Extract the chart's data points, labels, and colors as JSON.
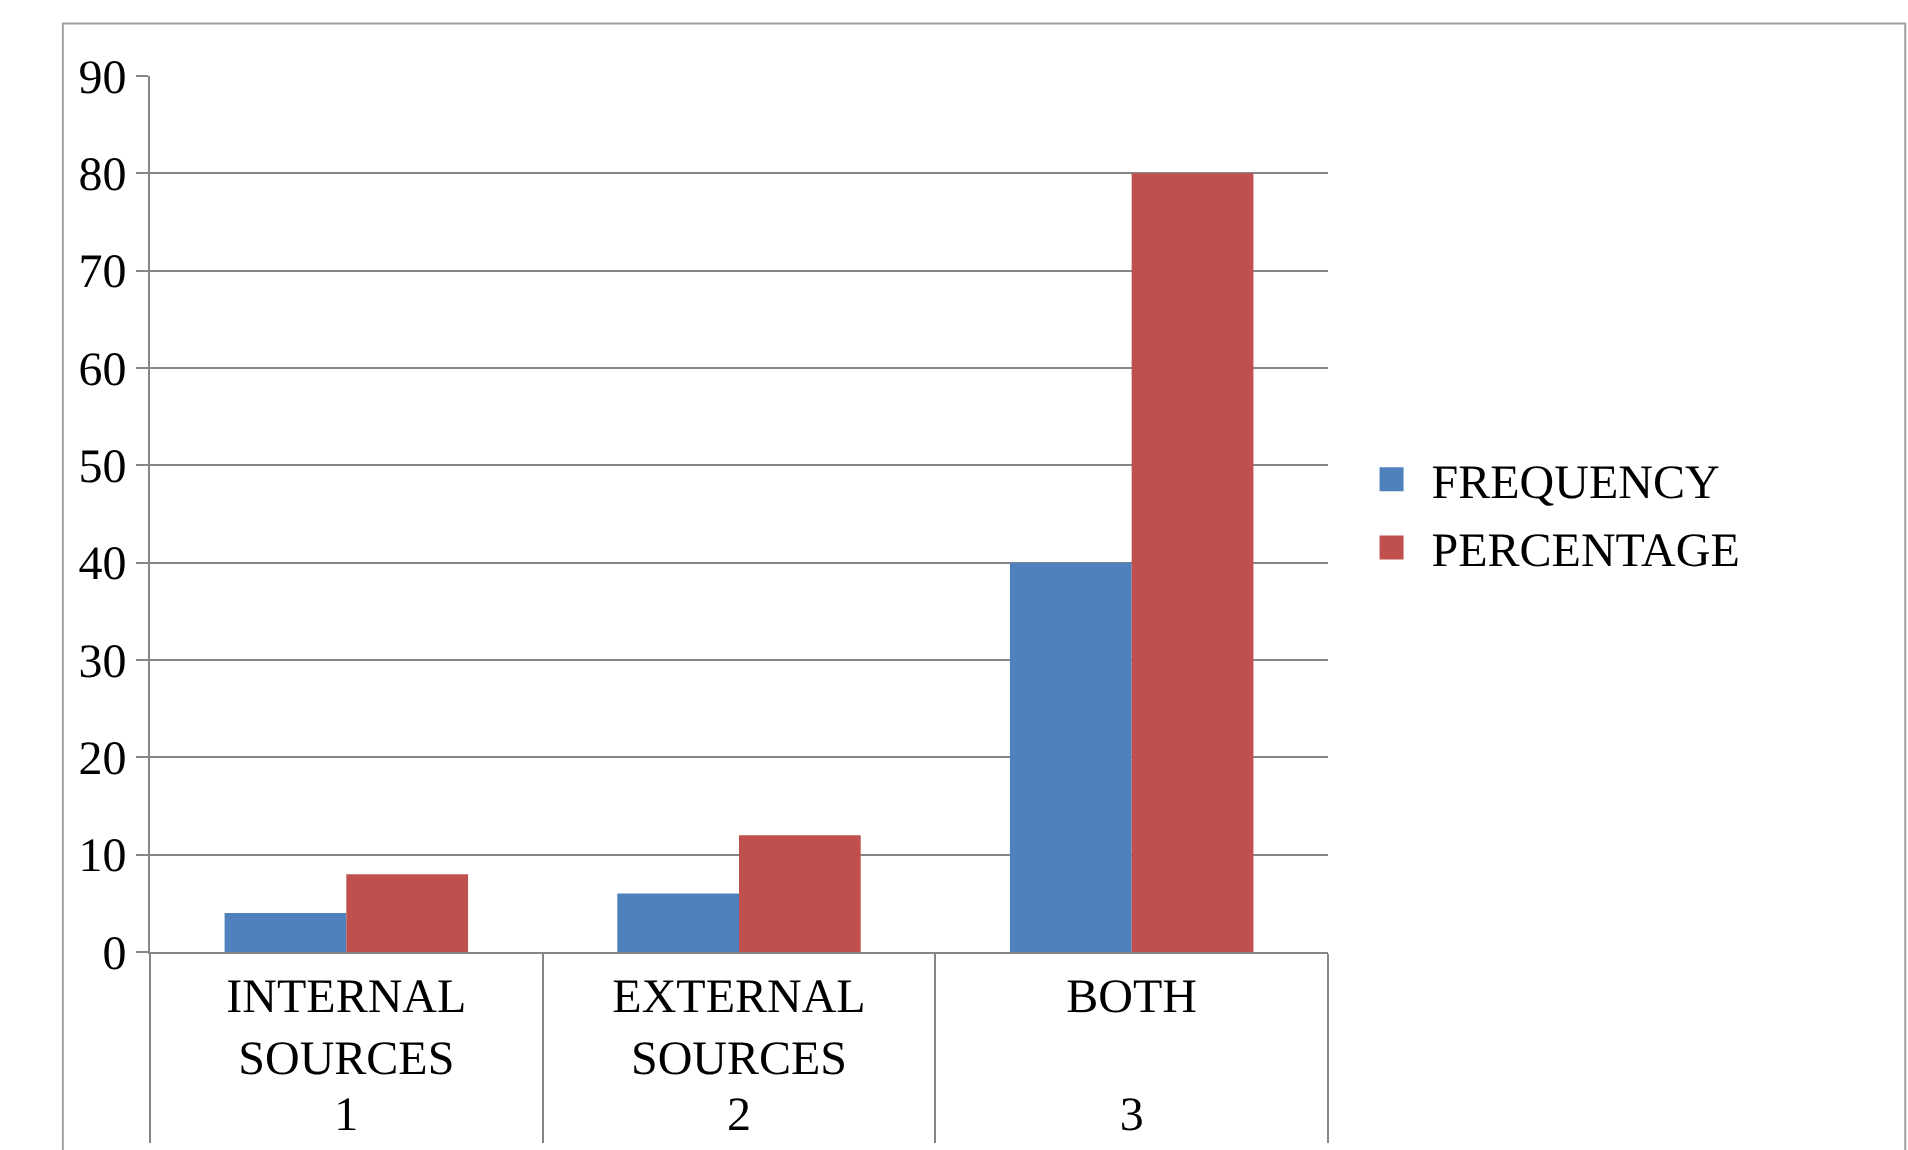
{
  "chart_data": {
    "type": "bar",
    "categories": [
      "INTERNAL SOURCES",
      "EXTERNAL SOURCES",
      "BOTH"
    ],
    "series": [
      {
        "name": "FREQUENCY",
        "color": "#4f81bd",
        "values": [
          4,
          6,
          40
        ]
      },
      {
        "name": "PERCENTAGE",
        "color": "#c0504d",
        "values": [
          8,
          12,
          80
        ]
      }
    ],
    "annotations": [
      "1",
      "2",
      "3"
    ],
    "ylim": [
      0,
      90
    ],
    "yticks": [
      0,
      10,
      20,
      30,
      40,
      50,
      60,
      70,
      80,
      90
    ],
    "grid": "y",
    "legend": "right"
  }
}
